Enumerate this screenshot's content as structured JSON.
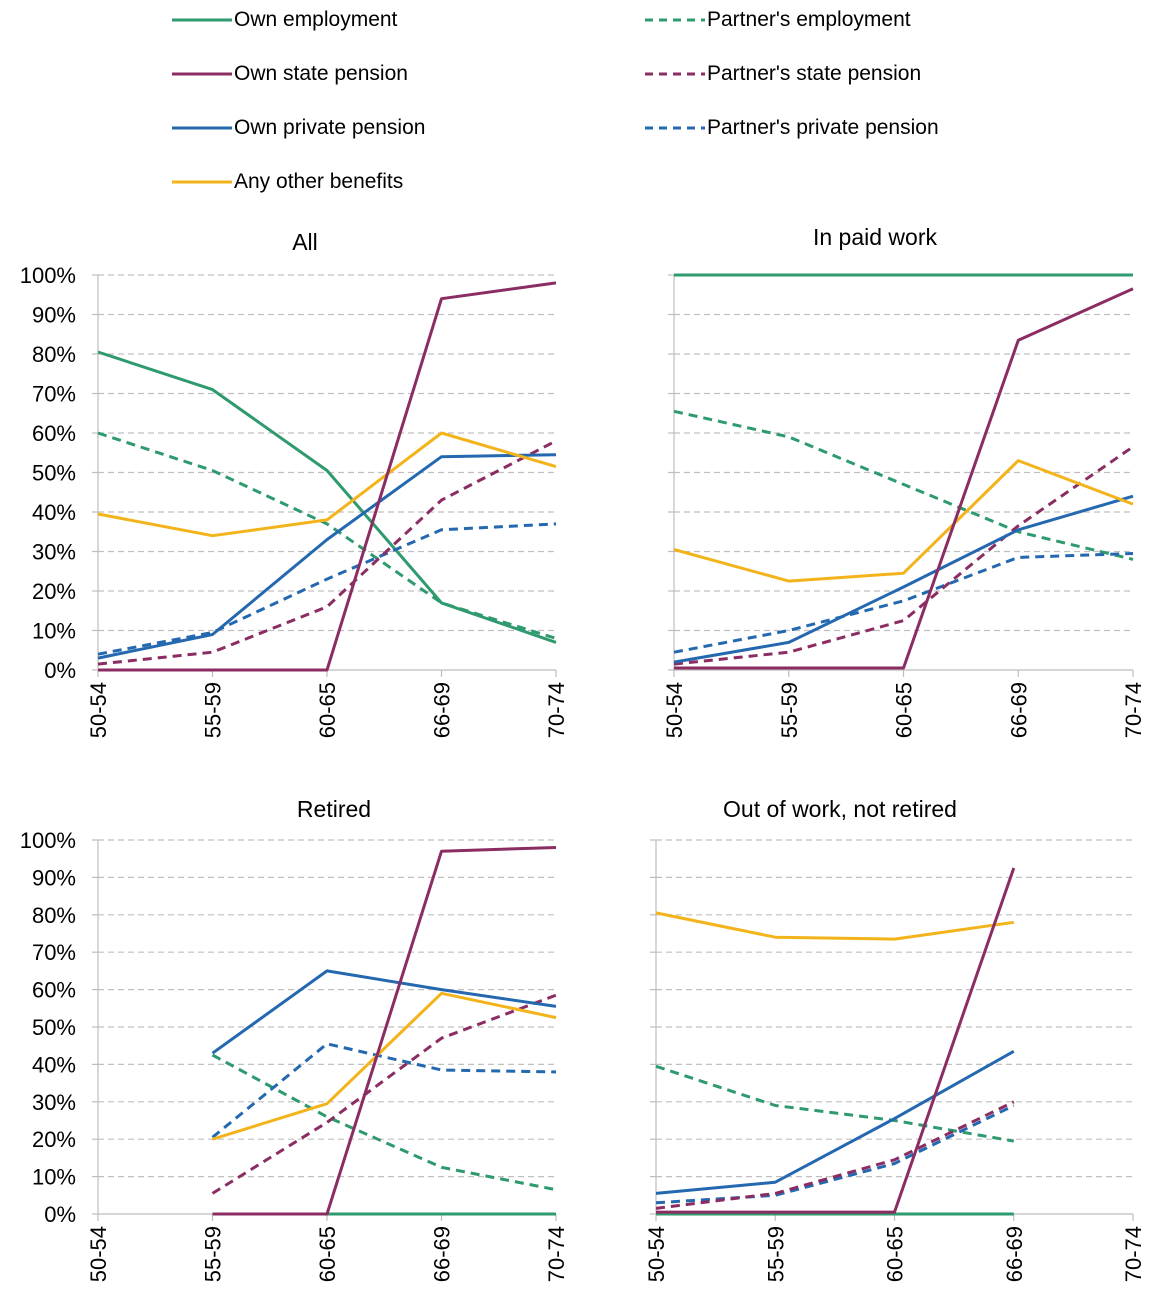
{
  "legend": [
    {
      "name": "Own employment",
      "color": "#2e9a6e",
      "dash": false
    },
    {
      "name": "Partner's employment",
      "color": "#2e9a6e",
      "dash": true
    },
    {
      "name": "Own state pension",
      "color": "#8b2d62",
      "dash": false
    },
    {
      "name": "Partner's state pension",
      "color": "#8b2d62",
      "dash": true
    },
    {
      "name": "Own private pension",
      "color": "#2468b0",
      "dash": false
    },
    {
      "name": "Partner's private pension",
      "color": "#2468b0",
      "dash": true
    },
    {
      "name": "Any other benefits",
      "color": "#f3b31a",
      "dash": false
    }
  ],
  "chart_data": [
    {
      "type": "line",
      "title": "All",
      "categories": [
        "50-54",
        "55-59",
        "60-65",
        "66-69",
        "70-74"
      ],
      "y_tick_labels": [
        "0%",
        "10%",
        "20%",
        "30%",
        "40%",
        "50%",
        "60%",
        "70%",
        "80%",
        "90%",
        "100%"
      ],
      "ylim": [
        0,
        100
      ],
      "grid": true,
      "series": [
        {
          "name": "Own employment",
          "values": [
            80.5,
            71,
            50.5,
            17,
            7
          ]
        },
        {
          "name": "Partner's employment",
          "values": [
            60,
            50.5,
            37,
            17,
            8
          ]
        },
        {
          "name": "Own state pension",
          "values": [
            0,
            0,
            0,
            94,
            98
          ]
        },
        {
          "name": "Partner's state pension",
          "values": [
            1.5,
            4.5,
            16,
            43,
            58
          ]
        },
        {
          "name": "Own private pension",
          "values": [
            3,
            9,
            33,
            54,
            54.5
          ]
        },
        {
          "name": "Partner's private pension",
          "values": [
            4,
            9.5,
            23,
            35.5,
            37
          ]
        },
        {
          "name": "Any other benefits",
          "values": [
            39.5,
            34,
            38,
            60,
            51.5
          ]
        }
      ]
    },
    {
      "type": "line",
      "title": "In paid work",
      "categories": [
        "50-54",
        "55-59",
        "60-65",
        "66-69",
        "70-74"
      ],
      "y_tick_labels": [],
      "ylim": [
        0,
        100
      ],
      "grid": true,
      "series": [
        {
          "name": "Own employment",
          "values": [
            100,
            100,
            100,
            100,
            100
          ]
        },
        {
          "name": "Partner's employment",
          "values": [
            65.5,
            59,
            47,
            35,
            28
          ]
        },
        {
          "name": "Own state pension",
          "values": [
            0.5,
            0.5,
            0.5,
            83.5,
            96.5
          ]
        },
        {
          "name": "Partner's state pension",
          "values": [
            1.5,
            4.5,
            12.5,
            36.5,
            56.5
          ]
        },
        {
          "name": "Own private pension",
          "values": [
            2,
            7,
            21,
            35.5,
            44
          ]
        },
        {
          "name": "Partner's private pension",
          "values": [
            4.5,
            10,
            17.5,
            28.5,
            29.5
          ]
        },
        {
          "name": "Any other benefits",
          "values": [
            30.5,
            22.5,
            24.5,
            53,
            42
          ]
        }
      ]
    },
    {
      "type": "line",
      "title": "Retired",
      "categories": [
        "50-54",
        "55-59",
        "60-65",
        "66-69",
        "70-74"
      ],
      "y_tick_labels": [
        "0%",
        "10%",
        "20%",
        "30%",
        "40%",
        "50%",
        "60%",
        "70%",
        "80%",
        "90%",
        "100%"
      ],
      "ylim": [
        0,
        100
      ],
      "grid": true,
      "series": [
        {
          "name": "Own employment",
          "values": [
            null,
            0,
            0,
            0,
            0
          ]
        },
        {
          "name": "Partner's employment",
          "values": [
            null,
            42.5,
            26,
            12.5,
            6.5
          ]
        },
        {
          "name": "Own state pension",
          "values": [
            null,
            0,
            0,
            97,
            98
          ]
        },
        {
          "name": "Partner's state pension",
          "values": [
            null,
            5.5,
            24.5,
            47,
            58.5
          ]
        },
        {
          "name": "Own private pension",
          "values": [
            null,
            43,
            65,
            60,
            55.5
          ]
        },
        {
          "name": "Partner's private pension",
          "values": [
            null,
            20.5,
            45.5,
            38.5,
            38
          ]
        },
        {
          "name": "Any other benefits",
          "values": [
            null,
            20,
            29.5,
            59,
            52.5
          ]
        }
      ]
    },
    {
      "type": "line",
      "title": "Out of work, not retired",
      "categories": [
        "50-54",
        "55-59",
        "60-65",
        "66-69",
        "70-74"
      ],
      "y_tick_labels": [],
      "ylim": [
        0,
        100
      ],
      "grid": true,
      "series": [
        {
          "name": "Own employment",
          "values": [
            0,
            0,
            0,
            0,
            null
          ]
        },
        {
          "name": "Partner's employment",
          "values": [
            39.5,
            29,
            25,
            19.5,
            null
          ]
        },
        {
          "name": "Own state pension",
          "values": [
            0.5,
            0.5,
            0.5,
            92.5,
            null
          ]
        },
        {
          "name": "Partner's state pension",
          "values": [
            1.5,
            5.5,
            14.5,
            30,
            null
          ]
        },
        {
          "name": "Own private pension",
          "values": [
            5.5,
            8.5,
            25.5,
            43.5,
            null
          ]
        },
        {
          "name": "Partner's private pension",
          "values": [
            3,
            5,
            13.5,
            29,
            null
          ]
        },
        {
          "name": "Any other benefits",
          "values": [
            80.5,
            74,
            73.5,
            78,
            null
          ]
        }
      ]
    }
  ]
}
